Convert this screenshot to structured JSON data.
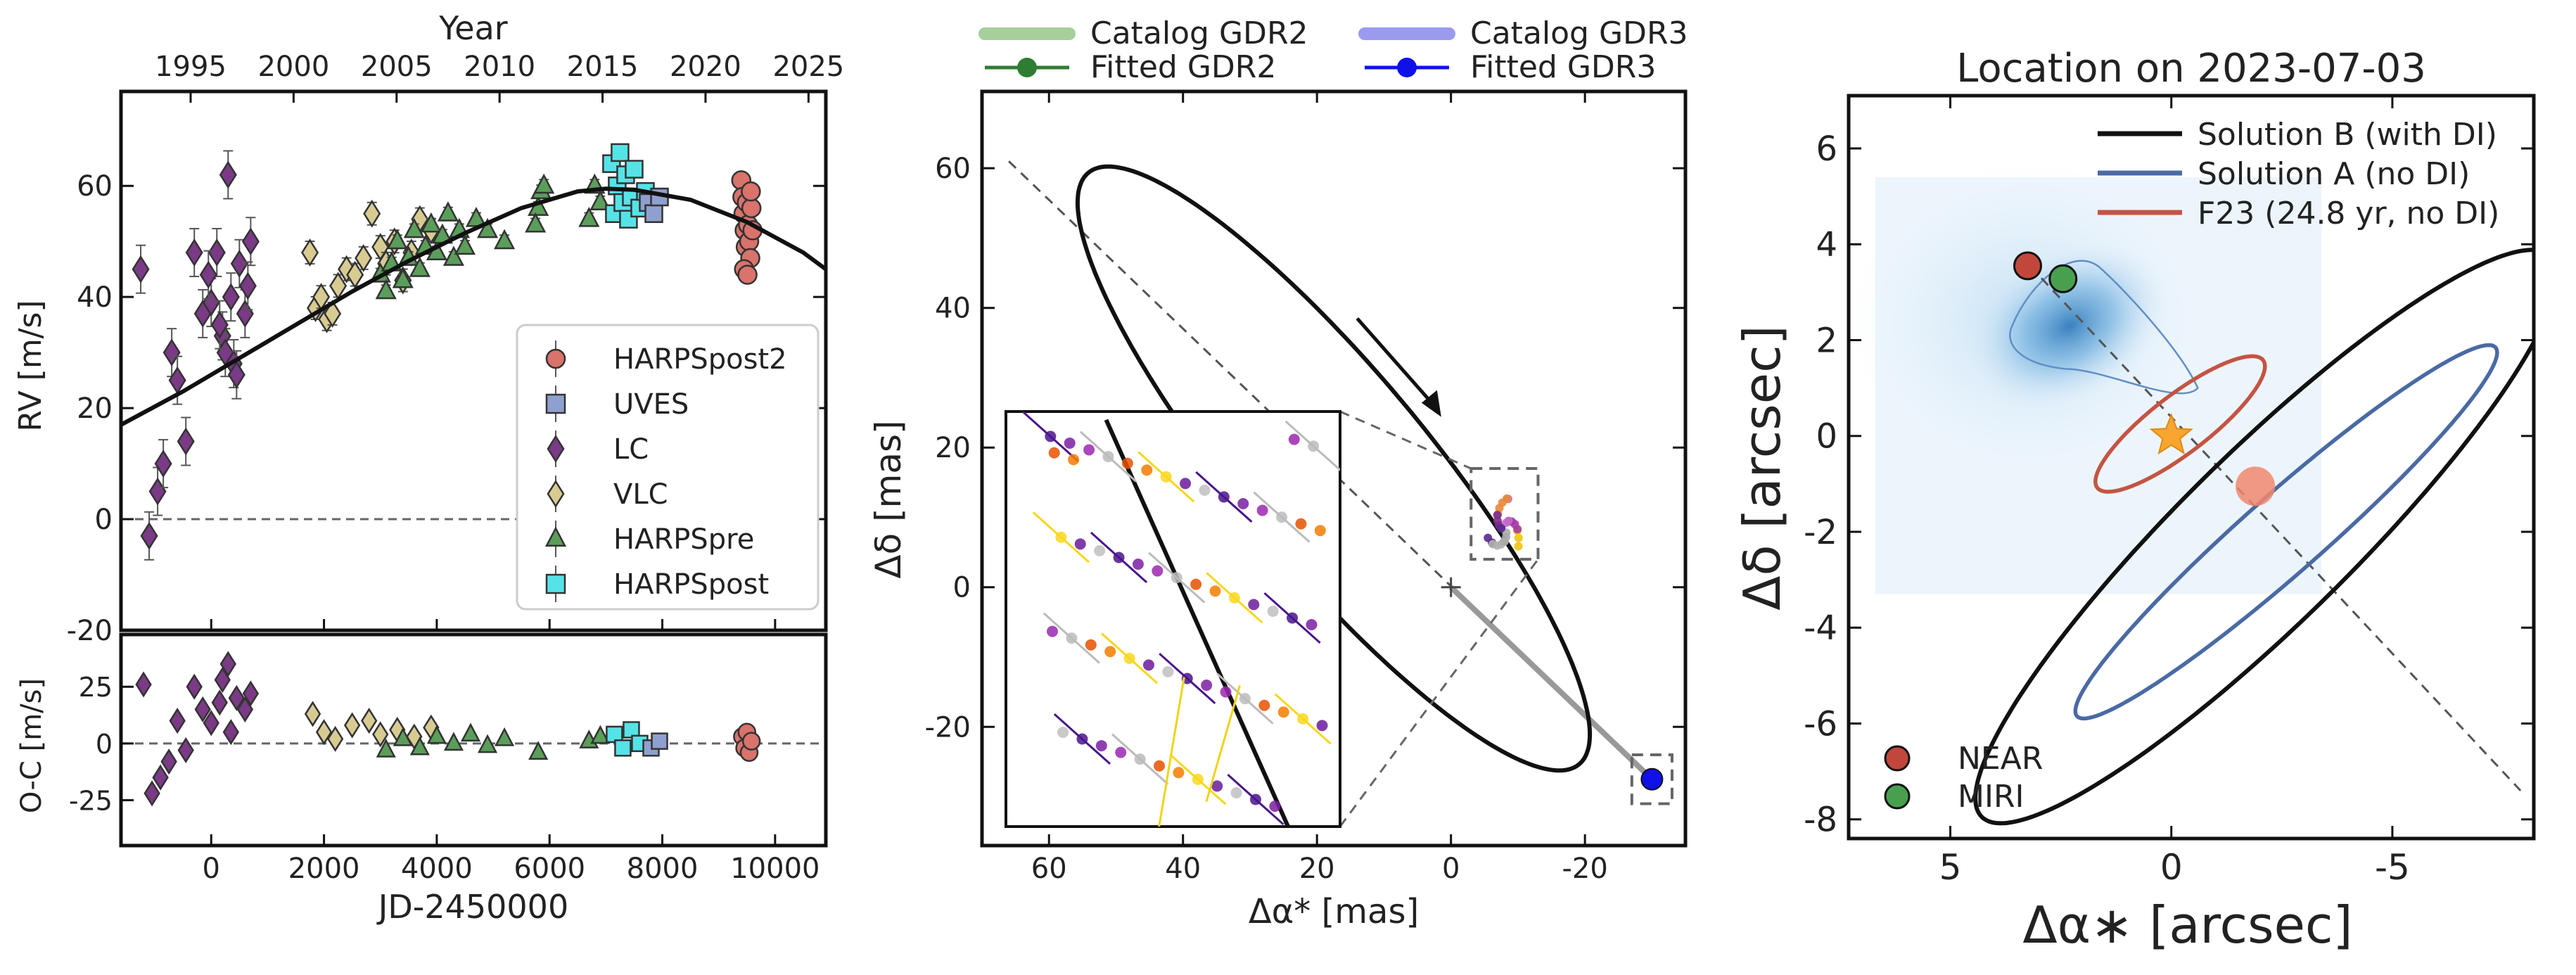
{
  "chart_data": [
    {
      "id": "rv",
      "type": "scatter",
      "top_axis": {
        "label": "Year",
        "ticks": [
          "1995",
          "2000",
          "2005",
          "2010",
          "2015",
          "2020",
          "2025"
        ],
        "years": [
          1995,
          2000,
          2005,
          2010,
          2015,
          2020,
          2025
        ]
      },
      "xlabel": "JD-2450000",
      "ylabel": "RV [m/s]",
      "xlim": [
        -1600,
        10900
      ],
      "ylim": [
        -20,
        77
      ],
      "xticks": [
        0,
        2000,
        4000,
        6000,
        8000,
        10000
      ],
      "xtick_labels": [
        "0",
        "2000",
        "4000",
        "6000",
        "8000",
        "10000"
      ],
      "yticks": [
        -20,
        0,
        20,
        40,
        60
      ],
      "ytick_labels": [
        "-20",
        "0",
        "20",
        "40",
        "60"
      ],
      "model_curve": {
        "x": [
          -1600,
          -500,
          500,
          1500,
          2500,
          3500,
          4500,
          5500,
          6500,
          7000,
          7500,
          8500,
          9500,
          10500,
          10900
        ],
        "y": [
          17,
          23,
          29,
          35,
          41,
          46.5,
          51.5,
          56,
          59,
          59.5,
          59.3,
          57.5,
          53.5,
          48,
          45
        ]
      },
      "legend": [
        {
          "label": "HARPSpost2",
          "marker": "circle",
          "color": "#d9736b"
        },
        {
          "label": "UVES",
          "marker": "square",
          "color": "#8fa0d0"
        },
        {
          "label": "LC",
          "marker": "diamond",
          "color": "#7a3a86"
        },
        {
          "label": "VLC",
          "marker": "diamond",
          "color": "#d8cb92"
        },
        {
          "label": "HARPSpre",
          "marker": "triangle",
          "color": "#5a9e5a"
        },
        {
          "label": "HARPSpost",
          "marker": "square",
          "color": "#55e3e8"
        }
      ],
      "series": [
        {
          "name": "LC",
          "x": [
            -1250,
            -1100,
            -950,
            -850,
            -700,
            -600,
            -450,
            -300,
            -150,
            0,
            100,
            200,
            300,
            350,
            400,
            500,
            600,
            700,
            250,
            -50,
            150,
            450,
            650
          ],
          "y": [
            45,
            -3,
            5,
            10,
            30,
            25,
            14,
            48,
            37,
            39,
            48,
            33,
            62,
            40,
            28,
            46,
            37,
            50,
            30,
            44,
            35,
            26,
            42
          ]
        },
        {
          "name": "VLC",
          "x": [
            1750,
            1850,
            1950,
            2050,
            2150,
            2250,
            2400,
            2550,
            2700,
            2850,
            3000,
            3100,
            3250,
            3400,
            3550,
            3700,
            3900
          ],
          "y": [
            48,
            38,
            40,
            36,
            37,
            42,
            45,
            44,
            47,
            55,
            49,
            46,
            50,
            43,
            48,
            54,
            52
          ]
        },
        {
          "name": "HARPSpre",
          "x": [
            3000,
            3100,
            3200,
            3300,
            3400,
            3500,
            3600,
            3700,
            3800,
            3900,
            4000,
            4100,
            4200,
            4300,
            4400,
            4500,
            4700,
            4900,
            5200,
            5800,
            5850,
            5750,
            5900,
            6700,
            6800,
            6900
          ],
          "y": [
            44,
            41,
            46,
            50,
            43,
            47,
            52,
            45,
            49,
            53,
            48,
            51,
            55,
            47,
            52,
            49,
            54,
            52,
            50,
            56,
            59,
            53,
            60,
            54,
            60,
            57
          ]
        },
        {
          "name": "HARPSpost",
          "x": [
            7100,
            7150,
            7200,
            7250,
            7300,
            7350,
            7400,
            7450,
            7500,
            7600,
            7700
          ],
          "y": [
            64,
            55,
            60,
            66,
            57,
            62,
            54,
            58,
            63,
            56,
            59
          ]
        },
        {
          "name": "UVES",
          "x": [
            7750,
            7850,
            7950
          ],
          "y": [
            57,
            55,
            58
          ]
        },
        {
          "name": "HARPSpost2",
          "x": [
            9400,
            9420,
            9440,
            9460,
            9480,
            9500,
            9520,
            9540,
            9560,
            9580,
            9600,
            9450,
            9510,
            9570
          ],
          "y": [
            61,
            58,
            55,
            52,
            49,
            57,
            53,
            50,
            47,
            56,
            52,
            45,
            44,
            59
          ]
        }
      ],
      "residuals": {
        "ylabel": "O-C [m/s]",
        "ylim": [
          -45,
          48
        ],
        "yticks": [
          -25,
          0,
          25
        ],
        "ytick_labels": [
          "-25",
          "0",
          "25"
        ],
        "series": [
          {
            "name": "LC",
            "x": [
              -1200,
              -1050,
              -900,
              -750,
              -600,
              -450,
              -300,
              -150,
              0,
              150,
              300,
              450,
              600,
              700,
              350,
              200
            ],
            "y": [
              26,
              -22,
              -15,
              -8,
              10,
              -3,
              25,
              15,
              9,
              18,
              35,
              20,
              15,
              22,
              5,
              28
            ]
          },
          {
            "name": "VLC",
            "x": [
              1800,
              2000,
              2200,
              2500,
              2800,
              3000,
              3300,
              3600,
              3900
            ],
            "y": [
              13,
              5,
              2,
              8,
              10,
              4,
              6,
              3,
              7
            ]
          },
          {
            "name": "HARPSpre",
            "x": [
              3100,
              3400,
              3700,
              4000,
              4300,
              4600,
              4900,
              5200,
              5800,
              6700,
              6900
            ],
            "y": [
              -3,
              2,
              -2,
              3,
              0,
              4,
              -1,
              2,
              -4,
              1,
              3
            ]
          },
          {
            "name": "HARPSpost",
            "x": [
              7150,
              7300,
              7450,
              7600
            ],
            "y": [
              4,
              -2,
              6,
              0
            ]
          },
          {
            "name": "UVES",
            "x": [
              7800,
              7950
            ],
            "y": [
              -2,
              1
            ]
          },
          {
            "name": "HARPSpost2",
            "x": [
              9420,
              9460,
              9500,
              9540,
              9580
            ],
            "y": [
              3,
              -2,
              5,
              -4,
              1
            ]
          }
        ]
      }
    },
    {
      "id": "astrometry",
      "type": "line",
      "xlabel": "Δα* [mas]",
      "ylabel": "Δδ [mas]",
      "xlim": [
        70,
        -35
      ],
      "ylim": [
        -37,
        71
      ],
      "xticks": [
        60,
        40,
        20,
        0,
        -20
      ],
      "xtick_labels": [
        "60",
        "40",
        "20",
        "0",
        "-20"
      ],
      "yticks": [
        -20,
        0,
        20,
        40,
        60
      ],
      "ytick_labels": [
        "-20",
        "0",
        "20",
        "40",
        "60"
      ],
      "legend": [
        {
          "label": "Catalog GDR2",
          "style": "band",
          "color": "#a6cf9b"
        },
        {
          "label": "Catalog GDR3",
          "style": "band",
          "color": "#9a9aef"
        },
        {
          "label": "Fitted    GDR2",
          "style": "line-marker",
          "color": "#2e7d32"
        },
        {
          "label": "Fitted    GDR3",
          "style": "line-marker",
          "color": "#1010e8"
        }
      ],
      "orbit_ellipse": {
        "cx": 17.5,
        "cy": 17.0,
        "a": 56.0,
        "b": 14.0,
        "angle_deg": 49.0
      },
      "dashed_line": {
        "from": [
          66.0,
          61.0
        ],
        "to": [
          -30.0,
          -27.5
        ]
      },
      "center_marker": [
        0,
        0
      ],
      "gdr3_point": [
        -30.0,
        -27.5
      ],
      "cluster": {
        "center": [
          -8.0,
          8.5
        ],
        "radius": 2.5
      },
      "zoom_boxes": [
        {
          "xmin": -13,
          "xmax": -3,
          "ymin": 4,
          "ymax": 17
        },
        {
          "xmin": -33,
          "xmax": -27,
          "ymin": -31,
          "ymax": -24
        }
      ],
      "inset": {
        "xlim": [
          -1.5,
          1.5
        ],
        "ylim": [
          -2.5,
          2.5
        ]
      }
    },
    {
      "id": "location",
      "type": "line",
      "title": "Location on 2023-07-03",
      "xlabel": "Δα∗ [arcsec]",
      "ylabel": "Δδ [arcsec]",
      "xlim": [
        7.3,
        -8.2
      ],
      "ylim": [
        -8.4,
        7.1
      ],
      "xticks": [
        5,
        0,
        -5
      ],
      "xtick_labels": [
        "5",
        "0",
        "-5"
      ],
      "yticks": [
        -8,
        -6,
        -4,
        -2,
        0,
        2,
        4,
        6
      ],
      "ytick_labels": [
        "-8",
        "-6",
        "-4",
        "-2",
        "0",
        "2",
        "4",
        "6"
      ],
      "legend": [
        {
          "label": "Solution B (with DI)",
          "color": "#111111"
        },
        {
          "label": "Solution A (no DI)",
          "color": "#4a6aa5"
        },
        {
          "label": "F23 (24.8 yr, no DI)",
          "color": "#c45443"
        }
      ],
      "ellipses": [
        {
          "name": "Solution B (with DI)",
          "color": "#111111",
          "cx": -2.15,
          "cy": -2.1,
          "a": 8.7,
          "b": 1.85,
          "angle_deg": -42.0
        },
        {
          "name": "Solution A (no DI)",
          "color": "#4a6aa5",
          "cx": -2.6,
          "cy": -2.0,
          "a": 6.1,
          "b": 0.85,
          "angle_deg": -39.0
        },
        {
          "name": "F23 (24.8 yr, no DI)",
          "color": "#c45443",
          "cx": -0.2,
          "cy": 0.25,
          "a": 2.3,
          "b": 0.62,
          "angle_deg": -35.0
        }
      ],
      "dashed_line": {
        "from": [
          3.2,
          3.55
        ],
        "to": [
          -7.9,
          -7.4
        ]
      },
      "star": [
        0,
        0
      ],
      "predicted_blob": [
        -1.9,
        -1.05
      ],
      "points": [
        {
          "label": "NEAR",
          "x": 3.25,
          "y": 3.55,
          "color": "#c1473d"
        },
        {
          "label": "MIRI",
          "x": 2.45,
          "y": 3.28,
          "color": "#48a04f"
        }
      ]
    }
  ]
}
